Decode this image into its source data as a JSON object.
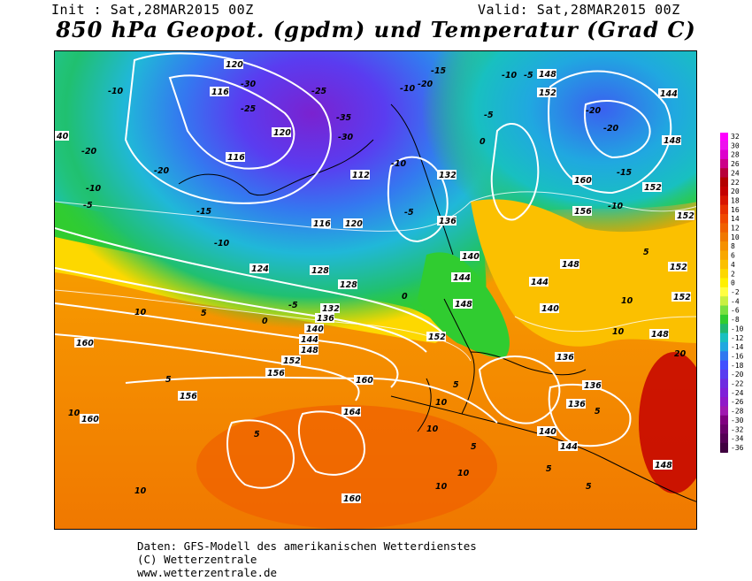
{
  "header": {
    "init": "Init : Sat,28MAR2015 00Z",
    "valid": "Valid: Sat,28MAR2015 00Z",
    "title": "850 hPa Geopot. (gpdm) und Temperatur (Grad C)"
  },
  "footer": {
    "line1": "Daten: GFS-Modell des amerikanischen Wetterdienstes",
    "line2": "(C) Wetterzentrale",
    "line3": "www.wetterzentrale.de"
  },
  "colorbar": {
    "levels": [
      "32",
      "30",
      "28",
      "26",
      "24",
      "22",
      "20",
      "18",
      "16",
      "14",
      "12",
      "10",
      "8",
      "6",
      "4",
      "2",
      "0",
      "-2",
      "-4",
      "-6",
      "-8",
      "-10",
      "-12",
      "-14",
      "-16",
      "-18",
      "-20",
      "-22",
      "-24",
      "-26",
      "-28",
      "-30",
      "-32",
      "-34",
      "-36"
    ],
    "colors": [
      "#ff00ff",
      "#ee10ee",
      "#dd00cc",
      "#cc0088",
      "#b8003a",
      "#b30000",
      "#c40000",
      "#d81400",
      "#e83000",
      "#f04800",
      "#f06000",
      "#f07800",
      "#f59000",
      "#f8a800",
      "#fbc000",
      "#fdd800",
      "#fff000",
      "#ffff40",
      "#c8f040",
      "#78e040",
      "#30cc30",
      "#20b870",
      "#18c0c0",
      "#20a8e0",
      "#3078f0",
      "#4050ff",
      "#5a3cf0",
      "#6e2ce0",
      "#8020d8",
      "#9018c8",
      "#a018b0",
      "#800080",
      "#6a006a",
      "#550055",
      "#400040"
    ]
  },
  "map_data": {
    "description_labels": {
      "geopotential_gpdm": [
        "120",
        "116",
        "112",
        "116",
        "124",
        "128",
        "132",
        "136",
        "140",
        "144",
        "148",
        "152",
        "156",
        "160",
        "164",
        "40",
        "120",
        "128",
        "136",
        "140",
        "144",
        "148",
        "152",
        "156",
        "160"
      ],
      "temperature_c": [
        "-25",
        "-30",
        "-20",
        "-35",
        "-15",
        "-10",
        "-5",
        "0",
        "5",
        "10",
        "20",
        "-20",
        "-15",
        "-10",
        "-5",
        "0",
        "5",
        "10"
      ]
    }
  }
}
